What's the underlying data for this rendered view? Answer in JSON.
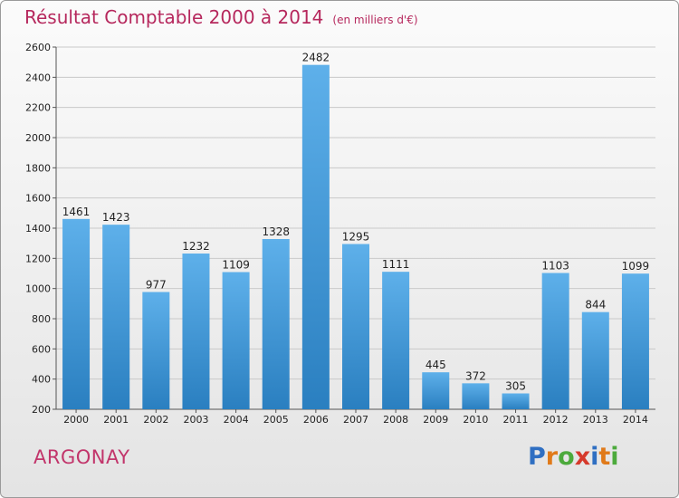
{
  "header": {
    "title": "Résultat Comptable 2000 à 2014",
    "subtitle": "(en milliers d'€)"
  },
  "footer": {
    "commune": "ARGONAY",
    "brand_letters": [
      "P",
      "r",
      "o",
      "x",
      "i",
      "t",
      "i"
    ],
    "brand_colors": [
      "#2f6fc2",
      "#e07a1a",
      "#4caa3c",
      "#d63a2c",
      "#2f6fc2",
      "#e07a1a",
      "#4caa3c"
    ]
  },
  "colors": {
    "bar_light": "#5eb0ea",
    "bar_dark": "#2a7fc0",
    "grid": "#c9c9c9",
    "axis": "#555555"
  },
  "chart_data": {
    "type": "bar",
    "title": "Résultat Comptable 2000 à 2014",
    "subtitle": "(en milliers d'€)",
    "xlabel": "",
    "ylabel": "",
    "categories": [
      "2000",
      "2001",
      "2002",
      "2003",
      "2004",
      "2005",
      "2006",
      "2007",
      "2008",
      "2009",
      "2010",
      "2011",
      "2012",
      "2013",
      "2014"
    ],
    "values": [
      1461,
      1423,
      977,
      1232,
      1109,
      1328,
      2482,
      1295,
      1111,
      445,
      372,
      305,
      1103,
      844,
      1099
    ],
    "ylim": [
      200,
      2600
    ],
    "yticks": [
      200,
      400,
      600,
      800,
      1000,
      1200,
      1400,
      1600,
      1800,
      2000,
      2200,
      2400,
      2600
    ],
    "grid": true
  }
}
